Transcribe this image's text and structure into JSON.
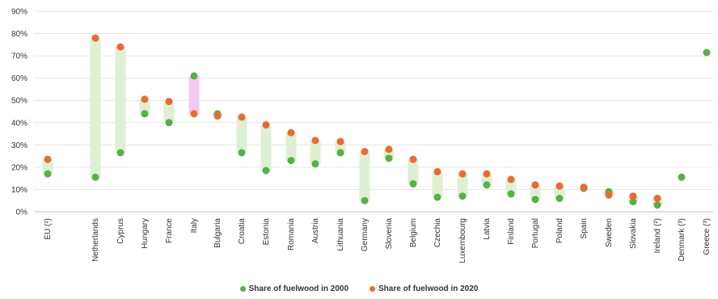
{
  "chart_data": {
    "type": "scatter",
    "title": "",
    "xlabel": "",
    "ylabel": "",
    "ylim": [
      0,
      90
    ],
    "y_ticks": [
      "0%",
      "10%",
      "20%",
      "30%",
      "40%",
      "50%",
      "60%",
      "70%",
      "80%",
      "90%"
    ],
    "grid": true,
    "legend_position": "bottom-center",
    "colors": {
      "2000": "#58b047",
      "2020": "#ee6a2c",
      "range": "#ddf0d3",
      "range_decrease": "#f7c8f2"
    },
    "categories": [
      "EU (¹)",
      "Netherlands",
      "Cyprus",
      "Hungary",
      "France",
      "Italy",
      "Bulgaria",
      "Croatia",
      "Estonia",
      "Romania",
      "Austria",
      "Lithuania",
      "Germany",
      "Slovenia",
      "Belgium",
      "Czechia",
      "Luxembourg",
      "Latvia",
      "Finland",
      "Portugal",
      "Poland",
      "Spain",
      "Sweden",
      "Slovakia",
      "Ireland (²)",
      "Denmark (³)",
      "Greece (³)"
    ],
    "series": [
      {
        "name": "Share of fuelwood in 2000",
        "values": [
          17,
          15.5,
          26.5,
          44,
          40,
          61,
          44,
          26.5,
          18.5,
          23,
          21.5,
          26.5,
          5,
          24,
          12.5,
          6.5,
          7,
          12,
          8,
          5.5,
          6,
          10.5,
          9,
          4.5,
          3,
          15.5,
          71.5
        ]
      },
      {
        "name": "Share of fuelwood in 2020",
        "values": [
          23.5,
          78,
          74,
          50.5,
          49.5,
          44,
          43,
          42.5,
          39,
          35.5,
          32,
          31.5,
          27,
          28,
          23.5,
          18,
          17,
          17,
          14.5,
          12,
          11.5,
          11,
          7.5,
          7,
          6,
          null,
          null
        ]
      }
    ]
  }
}
